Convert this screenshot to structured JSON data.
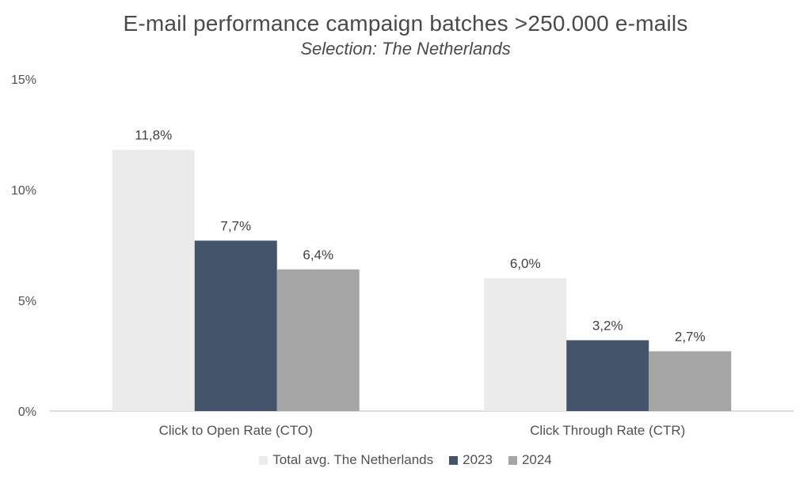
{
  "chart_data": {
    "type": "bar",
    "title": "E-mail performance campaign batches >250.000 e-mails",
    "subtitle": "Selection: The Netherlands",
    "categories": [
      "Click to Open Rate (CTO)",
      "Click Through Rate (CTR)"
    ],
    "series": [
      {
        "name": "Total avg. The Netherlands",
        "values": [
          11.8,
          6.0
        ],
        "labels": [
          "11,8%",
          "6,0%"
        ],
        "color": "#ebebeb"
      },
      {
        "name": "2023",
        "values": [
          7.7,
          3.2
        ],
        "labels": [
          "7,7%",
          "3,2%"
        ],
        "color": "#44546a"
      },
      {
        "name": "2024",
        "values": [
          6.4,
          2.7
        ],
        "labels": [
          "6,4%",
          "2,7%"
        ],
        "color": "#a5a5a5"
      }
    ],
    "ylim": [
      0,
      15
    ],
    "yticks": [
      0,
      5,
      10,
      15
    ],
    "ytick_labels": [
      "0%",
      "5%",
      "10%",
      "15%"
    ],
    "xlabel": "",
    "ylabel": "",
    "grid": false,
    "legend_position": "bottom"
  }
}
